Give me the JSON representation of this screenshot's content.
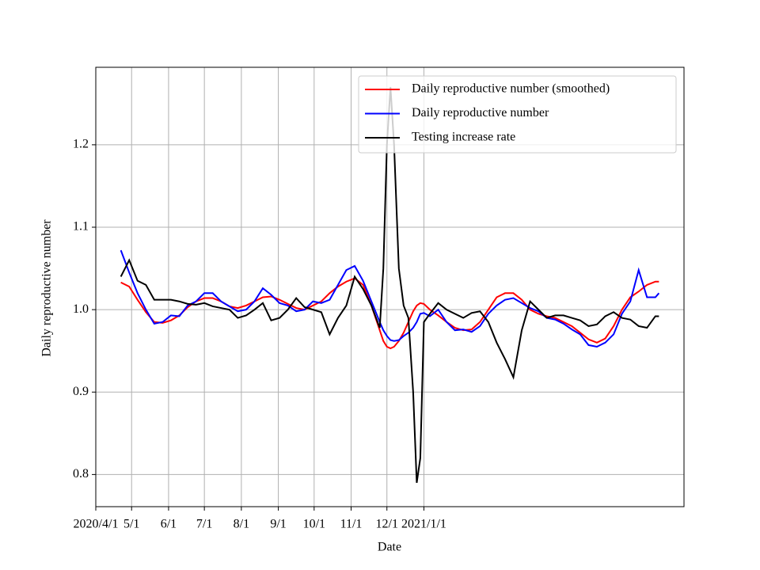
{
  "chart_data": {
    "type": "line",
    "x_label": "Date",
    "y_label": "Daily reproductive number",
    "x": [
      "2020-04-22",
      "2020-04-29",
      "2020-05-06",
      "2020-05-13",
      "2020-05-20",
      "2020-05-27",
      "2020-06-03",
      "2020-06-10",
      "2020-06-17",
      "2020-06-24",
      "2020-07-01",
      "2020-07-08",
      "2020-07-15",
      "2020-07-22",
      "2020-07-29",
      "2020-08-05",
      "2020-08-12",
      "2020-08-19",
      "2020-08-26",
      "2020-09-02",
      "2020-09-09",
      "2020-09-16",
      "2020-09-23",
      "2020-09-30",
      "2020-10-07",
      "2020-10-14",
      "2020-10-21",
      "2020-10-28",
      "2020-11-04",
      "2020-11-11",
      "2020-11-18",
      "2020-11-25",
      "2020-11-28",
      "2020-12-01",
      "2020-12-04",
      "2020-12-07",
      "2020-12-11",
      "2020-12-15",
      "2020-12-19",
      "2020-12-23",
      "2020-12-26",
      "2020-12-29",
      "2021-01-01",
      "2021-01-06",
      "2021-01-13",
      "2021-01-20",
      "2021-01-27",
      "2021-02-03",
      "2021-02-10",
      "2021-02-17",
      "2021-02-24",
      "2021-03-03",
      "2021-03-10",
      "2021-03-17",
      "2021-03-24",
      "2021-03-31",
      "2021-04-07",
      "2021-04-14",
      "2021-04-21",
      "2021-04-28",
      "2021-05-05",
      "2021-05-12",
      "2021-05-19",
      "2021-05-26",
      "2021-06-02",
      "2021-06-09",
      "2021-06-16",
      "2021-06-23",
      "2021-06-30",
      "2021-07-07",
      "2021-07-14",
      "2021-07-17"
    ],
    "series": [
      {
        "name": "Daily reproductive number (smoothed)",
        "color": "#ff0000",
        "values": [
          1.033,
          1.028,
          1.012,
          0.997,
          0.985,
          0.984,
          0.987,
          0.993,
          1.003,
          1.01,
          1.014,
          1.014,
          1.01,
          1.004,
          1.002,
          1.005,
          1.01,
          1.015,
          1.016,
          1.012,
          1.007,
          1.002,
          1.0,
          1.005,
          1.01,
          1.02,
          1.028,
          1.034,
          1.038,
          1.03,
          1.005,
          0.975,
          0.962,
          0.955,
          0.953,
          0.955,
          0.962,
          0.972,
          0.985,
          0.998,
          1.005,
          1.008,
          1.007,
          1.0,
          0.993,
          0.985,
          0.978,
          0.975,
          0.976,
          0.985,
          1.0,
          1.015,
          1.02,
          1.02,
          1.012,
          1.0,
          0.995,
          0.992,
          0.99,
          0.985,
          0.98,
          0.972,
          0.964,
          0.96,
          0.965,
          0.98,
          1.0,
          1.015,
          1.022,
          1.03,
          1.034,
          1.034
        ]
      },
      {
        "name": "Daily reproductive number",
        "color": "#0000ff",
        "values": [
          1.072,
          1.045,
          1.02,
          1.0,
          0.983,
          0.985,
          0.993,
          0.992,
          1.005,
          1.01,
          1.02,
          1.02,
          1.01,
          1.004,
          0.998,
          1.0,
          1.01,
          1.026,
          1.018,
          1.008,
          1.005,
          0.998,
          1.0,
          1.01,
          1.008,
          1.012,
          1.03,
          1.048,
          1.053,
          1.035,
          1.01,
          0.985,
          0.975,
          0.968,
          0.963,
          0.962,
          0.963,
          0.968,
          0.972,
          0.978,
          0.985,
          0.995,
          0.996,
          0.992,
          1.0,
          0.985,
          0.975,
          0.976,
          0.973,
          0.98,
          0.995,
          1.005,
          1.012,
          1.014,
          1.008,
          1.002,
          0.998,
          0.99,
          0.988,
          0.983,
          0.976,
          0.97,
          0.957,
          0.955,
          0.96,
          0.97,
          0.995,
          1.01,
          1.048,
          1.015,
          1.015,
          1.02
        ]
      },
      {
        "name": "Testing increase rate",
        "color": "#000000",
        "values": [
          1.04,
          1.06,
          1.035,
          1.03,
          1.012,
          1.012,
          1.012,
          1.01,
          1.007,
          1.006,
          1.008,
          1.004,
          1.002,
          1.0,
          0.99,
          0.993,
          1.0,
          1.008,
          0.987,
          0.99,
          1.0,
          1.014,
          1.003,
          1.0,
          0.997,
          0.97,
          0.99,
          1.005,
          1.04,
          1.025,
          1.005,
          0.978,
          1.05,
          1.2,
          1.27,
          1.2,
          1.05,
          1.005,
          0.99,
          0.9,
          0.79,
          0.82,
          0.985,
          0.995,
          1.008,
          1.0,
          0.995,
          0.99,
          0.996,
          0.998,
          0.985,
          0.96,
          0.94,
          0.918,
          0.975,
          1.01,
          1.0,
          0.99,
          0.993,
          0.993,
          0.99,
          0.987,
          0.98,
          0.982,
          0.992,
          0.997,
          0.99,
          0.988,
          0.98,
          0.978,
          0.992,
          0.992
        ]
      }
    ],
    "xlim": [
      "2020-04-01",
      "2021-08-07"
    ],
    "xticks": [
      {
        "value": "2020-04-01",
        "label": "2020/4/1"
      },
      {
        "value": "2020-05-01",
        "label": "5/1"
      },
      {
        "value": "2020-06-01",
        "label": "6/1"
      },
      {
        "value": "2020-07-01",
        "label": "7/1"
      },
      {
        "value": "2020-08-01",
        "label": "8/1"
      },
      {
        "value": "2020-09-01",
        "label": "9/1"
      },
      {
        "value": "2020-10-01",
        "label": "10/1"
      },
      {
        "value": "2020-11-01",
        "label": "11/1"
      },
      {
        "value": "2020-12-01",
        "label": "12/1"
      },
      {
        "value": "2021-01-01",
        "label": "2021/1/1"
      }
    ],
    "ylim": [
      0.761,
      1.294
    ],
    "yticks": [
      0.8,
      0.9,
      {
        "value": 1,
        "label": "1.0"
      },
      1.1,
      1.2
    ],
    "grid": true,
    "legend": "upper right"
  }
}
